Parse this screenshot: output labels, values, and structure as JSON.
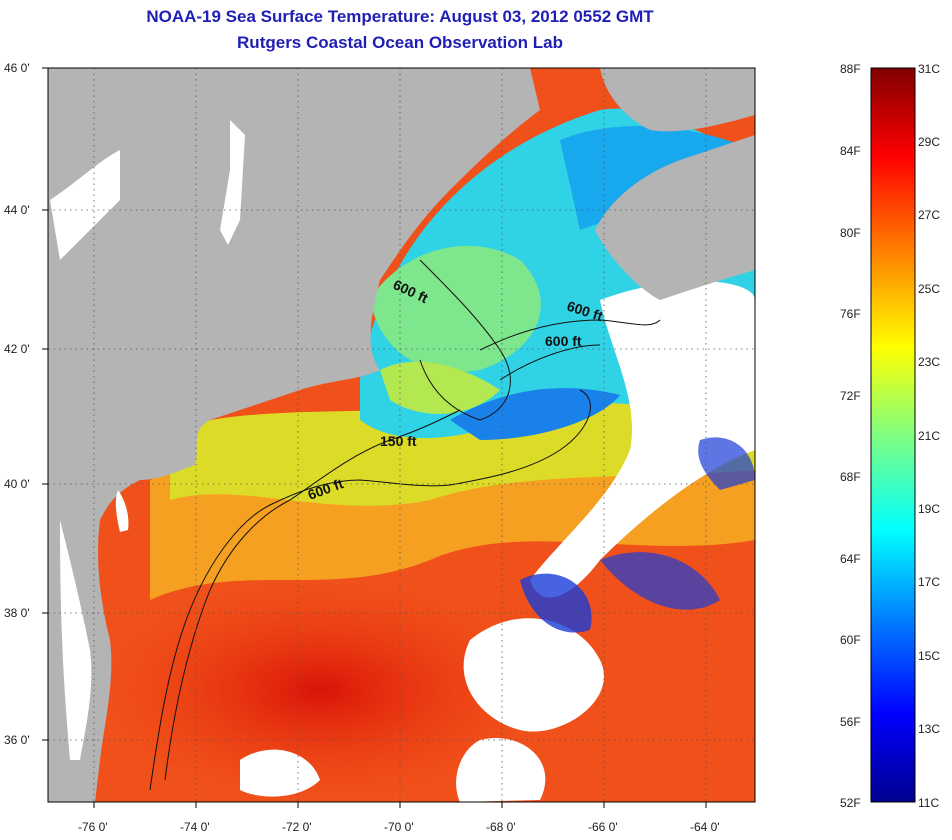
{
  "header": {
    "title": "NOAA-19 Sea Surface Temperature:  August 03, 2012 0552 GMT",
    "subtitle": "Rutgers Coastal Ocean Observation Lab"
  },
  "map": {
    "lat_labels": [
      "46 0'",
      "44 0'",
      "42 0'",
      "40 0'",
      "38 0'",
      "36 0'"
    ],
    "lon_labels": [
      "-76 0'",
      "-74 0'",
      "-72 0'",
      "-70 0'",
      "-68 0'",
      "-66 0'",
      "-64 0'"
    ],
    "contour_labels": [
      "600 ft",
      "600 ft",
      "600 ft",
      "150 ft",
      "600 ft"
    ],
    "colors": {
      "land": "#b4b4b4",
      "cloud": "#ffffff",
      "frame": "#000000"
    }
  },
  "colorbar": {
    "fahrenheit_labels": [
      "88F",
      "84F",
      "80F",
      "76F",
      "72F",
      "68F",
      "64F",
      "60F",
      "56F",
      "52F"
    ],
    "celsius_labels": [
      "31C",
      "29C",
      "27C",
      "25C",
      "23C",
      "21C",
      "19C",
      "17C",
      "15C",
      "13C",
      "11C"
    ]
  }
}
